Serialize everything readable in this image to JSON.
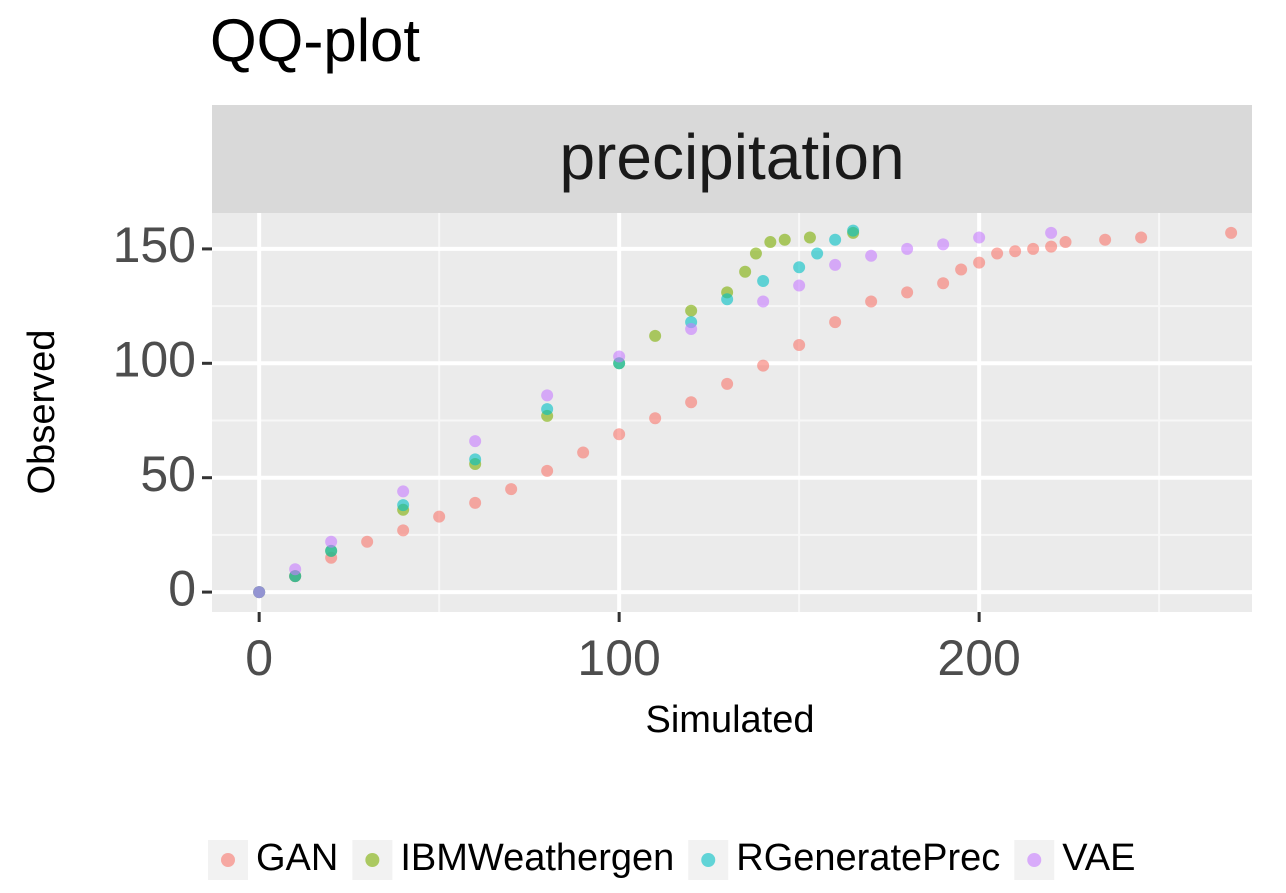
{
  "chart_data": {
    "type": "scatter",
    "title": "QQ-plot",
    "facet_label": "precipitation",
    "x_label": "Simulated",
    "y_label": "Observed",
    "xlim": [
      -13.1,
      275.8
    ],
    "ylim": [
      -8.7,
      165.7
    ],
    "xticks": [
      0,
      100,
      200
    ],
    "yticks": [
      0,
      50,
      100,
      150
    ],
    "x_minor_ticks": [
      50,
      150,
      250
    ],
    "y_minor_ticks": [
      25,
      75,
      125
    ],
    "grid": true,
    "legend": "bottom",
    "series": [
      {
        "name": "GAN",
        "color": "#F8766D",
        "x": [
          0,
          10,
          20,
          30,
          40,
          50,
          60,
          70,
          80,
          90,
          100,
          110,
          120,
          130,
          140,
          150,
          160,
          170,
          180,
          190,
          195,
          200,
          205,
          210,
          215,
          220,
          224,
          235,
          245,
          270
        ],
        "values": [
          0,
          7,
          15,
          22,
          27,
          33,
          39,
          45,
          53,
          61,
          69,
          76,
          83,
          91,
          99,
          108,
          118,
          127,
          131,
          135,
          141,
          144,
          148,
          149,
          150,
          151,
          153,
          154,
          155,
          157
        ]
      },
      {
        "name": "IBMWeathergen",
        "color": "#7CAE00",
        "x": [
          0,
          10,
          20,
          40,
          60,
          80,
          100,
          110,
          120,
          130,
          135,
          138,
          142,
          146,
          153,
          165
        ],
        "values": [
          0,
          7,
          18,
          36,
          56,
          77,
          100,
          112,
          123,
          131,
          140,
          148,
          153,
          154,
          155,
          157
        ]
      },
      {
        "name": "RGeneratePrec",
        "color": "#00BFC4",
        "x": [
          0,
          10,
          20,
          40,
          60,
          80,
          100,
          120,
          130,
          140,
          150,
          155,
          160,
          165
        ],
        "values": [
          0,
          7,
          18,
          38,
          58,
          80,
          100,
          118,
          128,
          136,
          142,
          148,
          154,
          158
        ]
      },
      {
        "name": "VAE",
        "color": "#C77CFF",
        "x": [
          0,
          10,
          20,
          40,
          60,
          80,
          100,
          120,
          140,
          150,
          160,
          170,
          180,
          190,
          200,
          220
        ],
        "values": [
          0,
          10,
          22,
          44,
          66,
          86,
          103,
          115,
          127,
          134,
          143,
          147,
          150,
          152,
          155,
          157
        ]
      }
    ]
  }
}
